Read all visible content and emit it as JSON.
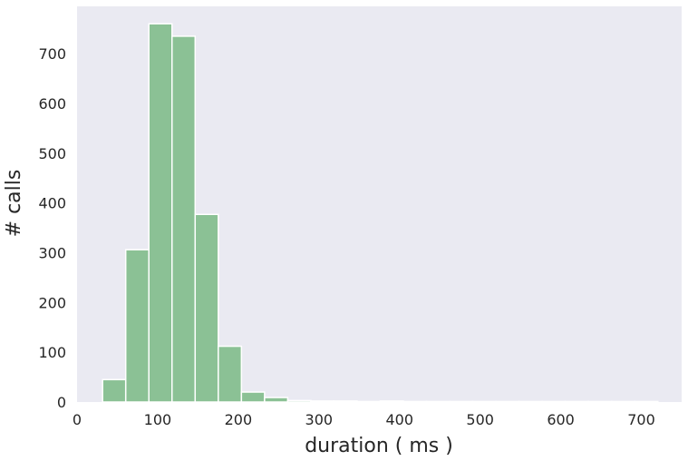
{
  "chart_data": {
    "type": "bar",
    "title": "",
    "xlabel": "duration ( ms )",
    "ylabel": "# calls",
    "xlim": [
      0,
      750
    ],
    "ylim": [
      0,
      795
    ],
    "xticks": [
      0,
      100,
      200,
      300,
      400,
      500,
      600,
      700
    ],
    "yticks": [
      0,
      100,
      200,
      300,
      400,
      500,
      600,
      700
    ],
    "grid": false,
    "bin_width": 28.7,
    "bins": [
      {
        "x0": 31.7,
        "value": 45
      },
      {
        "x0": 60.4,
        "value": 306
      },
      {
        "x0": 89.1,
        "value": 760
      },
      {
        "x0": 117.8,
        "value": 735
      },
      {
        "x0": 146.5,
        "value": 377
      },
      {
        "x0": 175.2,
        "value": 112
      },
      {
        "x0": 203.9,
        "value": 20
      },
      {
        "x0": 232.6,
        "value": 9
      },
      {
        "x0": 261.3,
        "value": 3
      },
      {
        "x0": 290.0,
        "value": 2
      },
      {
        "x0": 318.7,
        "value": 2
      },
      {
        "x0": 347.4,
        "value": 1
      },
      {
        "x0": 376.1,
        "value": 2
      },
      {
        "x0": 404.8,
        "value": 1
      },
      {
        "x0": 433.5,
        "value": 1
      },
      {
        "x0": 462.2,
        "value": 1
      },
      {
        "x0": 490.9,
        "value": 1
      },
      {
        "x0": 519.6,
        "value": 1
      },
      {
        "x0": 548.3,
        "value": 1
      },
      {
        "x0": 577.0,
        "value": 1
      },
      {
        "x0": 605.7,
        "value": 1
      },
      {
        "x0": 634.4,
        "value": 1
      },
      {
        "x0": 663.1,
        "value": 1
      },
      {
        "x0": 691.8,
        "value": 1
      }
    ],
    "colors": {
      "bar": "#8bc195",
      "background": "#eaeaf2",
      "text": "#262626"
    }
  }
}
